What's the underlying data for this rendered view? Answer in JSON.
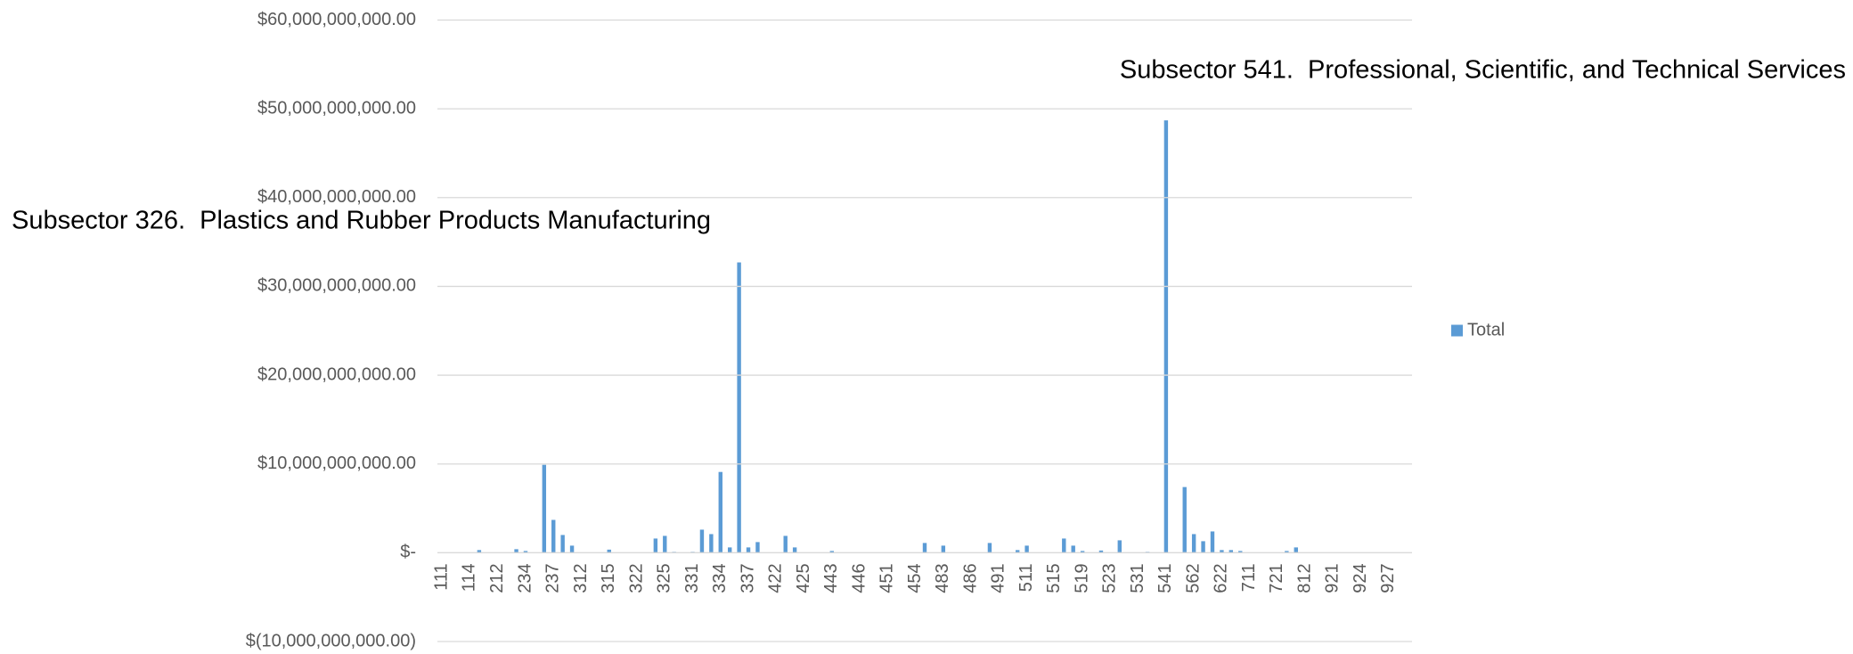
{
  "chart_data": {
    "type": "bar",
    "annotations": [
      "Subsector 326.  Plastics and Rubber Products Manufacturing",
      "Subsector 541.  Professional, Scientific, and Technical Services"
    ],
    "categories": [
      "111",
      null,
      null,
      "114",
      null,
      null,
      "212",
      null,
      null,
      "234",
      null,
      null,
      "237",
      null,
      null,
      "312",
      null,
      null,
      "315",
      null,
      null,
      "322",
      null,
      null,
      "325",
      null,
      null,
      "331",
      null,
      null,
      "334",
      null,
      null,
      "337",
      null,
      null,
      "422",
      null,
      null,
      "425",
      null,
      null,
      "443",
      null,
      null,
      "446",
      null,
      null,
      "451",
      null,
      null,
      "454",
      null,
      null,
      "483",
      null,
      null,
      "486",
      null,
      null,
      "491",
      null,
      null,
      "511",
      null,
      null,
      "515",
      null,
      null,
      "519",
      null,
      null,
      "523",
      null,
      null,
      "531",
      null,
      null,
      "541",
      null,
      null,
      "562",
      null,
      null,
      "622",
      null,
      null,
      "711",
      null,
      null,
      "721",
      null,
      null,
      "812",
      null,
      null,
      "921",
      null,
      null,
      "924",
      null,
      null,
      "927",
      null,
      null
    ],
    "series": [
      {
        "name": "Total",
        "color": "#5b9bd5",
        "values": [
          0,
          0,
          0,
          0,
          300000000,
          0,
          0,
          0,
          400000000,
          200000000,
          0,
          9900000000,
          3700000000,
          2000000000,
          800000000,
          0,
          0,
          0,
          350000000,
          0,
          0,
          0,
          0,
          1600000000,
          1900000000,
          100000000,
          0,
          100000000,
          2600000000,
          2100000000,
          9100000000,
          600000000,
          32700000000,
          600000000,
          1200000000,
          0,
          0,
          1900000000,
          600000000,
          0,
          0,
          0,
          200000000,
          0,
          0,
          0,
          0,
          0,
          0,
          0,
          0,
          0,
          1100000000,
          0,
          800000000,
          0,
          0,
          0,
          0,
          1100000000,
          0,
          0,
          300000000,
          800000000,
          0,
          0,
          0,
          1600000000,
          800000000,
          200000000,
          0,
          250000000,
          0,
          1400000000,
          0,
          0,
          100000000,
          0,
          48700000000,
          0,
          7400000000,
          2100000000,
          1300000000,
          2400000000,
          300000000,
          300000000,
          200000000,
          0,
          0,
          0,
          0,
          200000000,
          600000000,
          0,
          0,
          0,
          0,
          0,
          0,
          0,
          0,
          0,
          0,
          0,
          0
        ]
      }
    ],
    "ylim": [
      -10000000000,
      60000000000
    ],
    "yticks": [
      {
        "value": -10000000000,
        "label": "$(10,000,000,000.00)"
      },
      {
        "value": 0,
        "label": "$-"
      },
      {
        "value": 10000000000,
        "label": "$10,000,000,000.00"
      },
      {
        "value": 20000000000,
        "label": "$20,000,000,000.00"
      },
      {
        "value": 30000000000,
        "label": "$30,000,000,000.00"
      },
      {
        "value": 40000000000,
        "label": "$40,000,000,000.00"
      },
      {
        "value": 50000000000,
        "label": "$50,000,000,000.00"
      },
      {
        "value": 60000000000,
        "label": "$60,000,000,000.00"
      }
    ],
    "grid": true,
    "legend": "right"
  }
}
